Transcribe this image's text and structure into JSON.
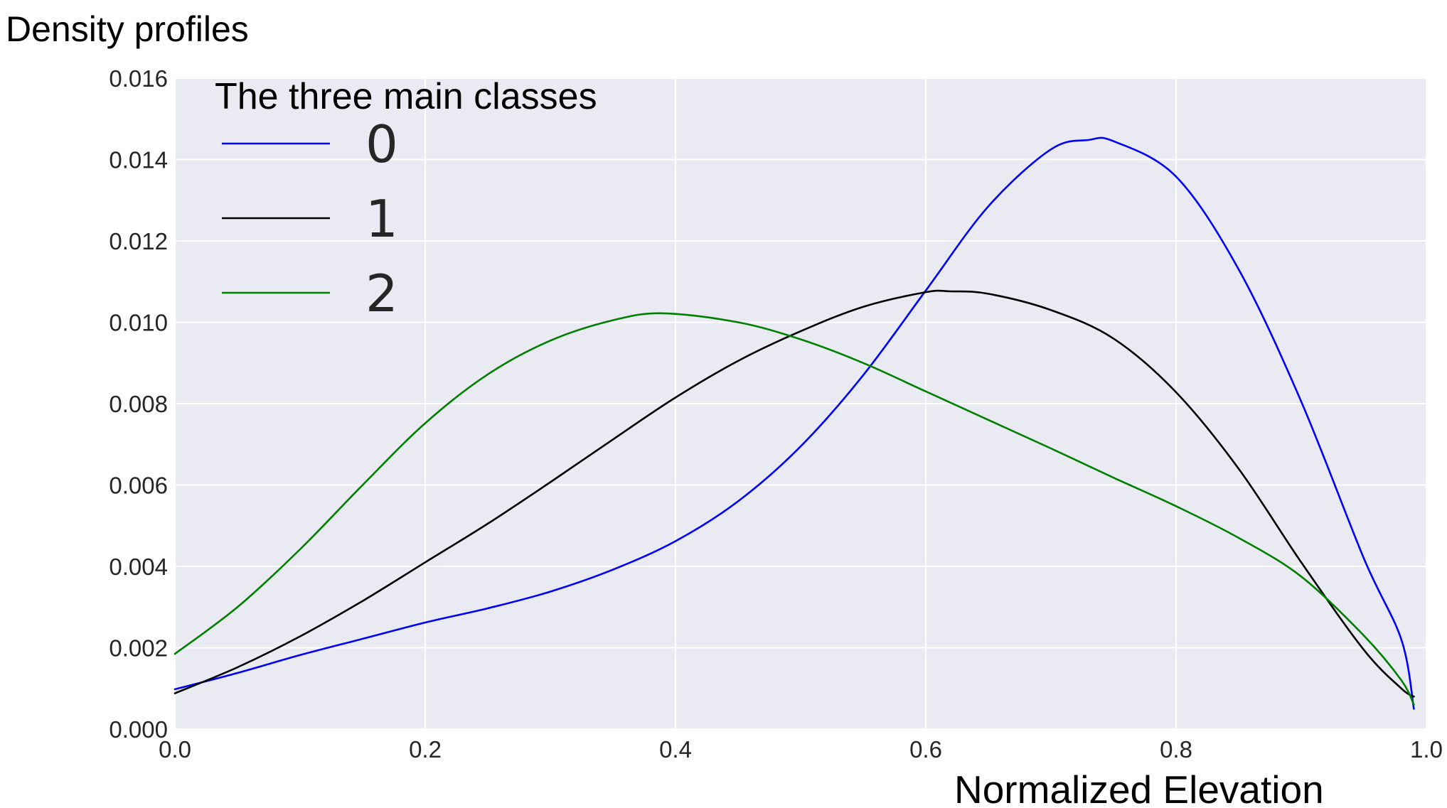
{
  "chart_data": {
    "type": "line",
    "title": "Density profiles",
    "xlabel": "Normalized Elevation",
    "ylabel": "",
    "xlim": [
      0.0,
      1.0
    ],
    "ylim": [
      0.0,
      0.016
    ],
    "grid": true,
    "xticks": [
      "0.0",
      "0.2",
      "0.4",
      "0.6",
      "0.8",
      "1.0"
    ],
    "yticks": [
      "0.000",
      "0.002",
      "0.004",
      "0.006",
      "0.008",
      "0.010",
      "0.012",
      "0.014",
      "0.016"
    ],
    "legend": {
      "title": "The three main classes",
      "placement": "top-left"
    },
    "series": [
      {
        "name": "0",
        "color": "#0000ff",
        "x": [
          0.0,
          0.05,
          0.1,
          0.15,
          0.2,
          0.25,
          0.3,
          0.35,
          0.4,
          0.45,
          0.5,
          0.55,
          0.6,
          0.65,
          0.7,
          0.73,
          0.75,
          0.8,
          0.85,
          0.9,
          0.95,
          0.98,
          0.99
        ],
        "y": [
          0.00098,
          0.00138,
          0.00182,
          0.00222,
          0.00262,
          0.00297,
          0.00338,
          0.00392,
          0.00462,
          0.0056,
          0.00695,
          0.0087,
          0.01078,
          0.01285,
          0.01425,
          0.01448,
          0.01445,
          0.01358,
          0.0113,
          0.00805,
          0.0042,
          0.0022,
          0.0005
        ]
      },
      {
        "name": "1",
        "color": "#000000",
        "x": [
          0.0,
          0.05,
          0.1,
          0.15,
          0.2,
          0.25,
          0.3,
          0.35,
          0.4,
          0.45,
          0.5,
          0.55,
          0.6,
          0.62,
          0.65,
          0.7,
          0.75,
          0.8,
          0.85,
          0.9,
          0.95,
          0.98,
          0.99
        ],
        "y": [
          0.00088,
          0.00152,
          0.00228,
          0.00315,
          0.0041,
          0.00505,
          0.00607,
          0.00712,
          0.00815,
          0.00905,
          0.00978,
          0.01038,
          0.01074,
          0.01076,
          0.0107,
          0.0103,
          0.0096,
          0.00828,
          0.0064,
          0.0041,
          0.00195,
          0.001,
          0.0008
        ]
      },
      {
        "name": "2",
        "color": "#008000",
        "x": [
          0.0,
          0.05,
          0.1,
          0.15,
          0.2,
          0.25,
          0.3,
          0.35,
          0.39,
          0.45,
          0.5,
          0.55,
          0.6,
          0.65,
          0.7,
          0.75,
          0.8,
          0.85,
          0.9,
          0.95,
          0.98,
          0.99
        ],
        "y": [
          0.00185,
          0.003,
          0.00442,
          0.006,
          0.00752,
          0.00872,
          0.00955,
          0.01005,
          0.01022,
          0.01,
          0.00958,
          0.009,
          0.0083,
          0.0076,
          0.0069,
          0.00618,
          0.00548,
          0.0047,
          0.00375,
          0.0023,
          0.0012,
          0.0006
        ]
      }
    ]
  }
}
